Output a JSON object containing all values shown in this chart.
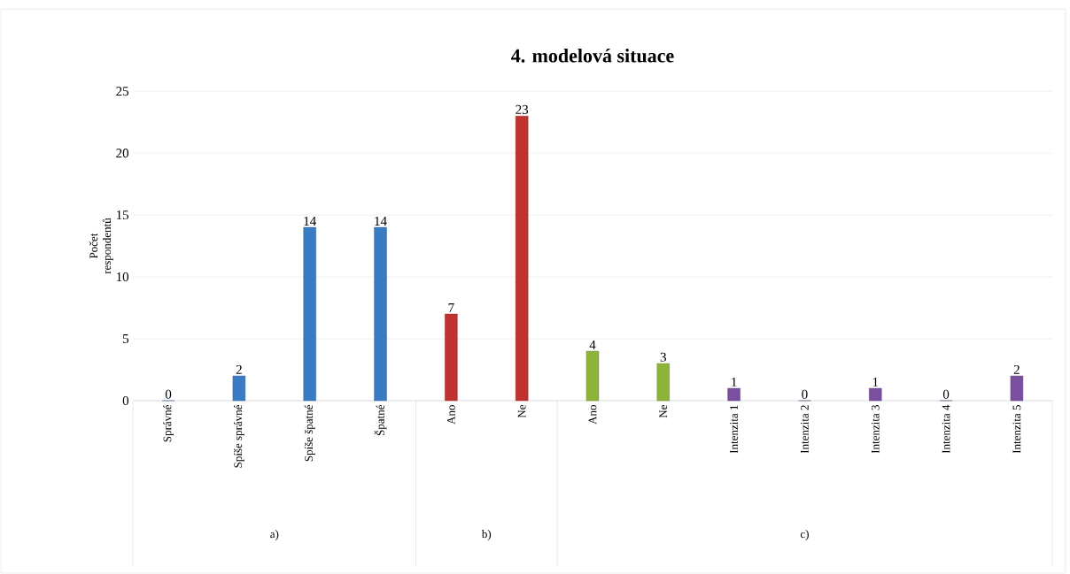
{
  "chart_data": {
    "type": "bar",
    "title": "4. modelová situace",
    "ylabel": "Počet respondentů",
    "categories": [
      "Správné",
      "Spíše správné",
      "Spíše špatné",
      "Špatné",
      "Ano",
      "Ne",
      "Ano",
      "Ne",
      "Intenzita 1",
      "Intenzita 2",
      "Intenzita 3",
      "Intenzita 4",
      "Intenzita 5"
    ],
    "values": [
      0,
      2,
      14,
      14,
      7,
      23,
      4,
      3,
      1,
      0,
      1,
      0,
      2
    ],
    "colors": [
      "#3a7cc4",
      "#3a7cc4",
      "#3a7cc4",
      "#3a7cc4",
      "#c0312f",
      "#c0312f",
      "#8db33a",
      "#8db33a",
      "#7a4fa0",
      "#7a4fa0",
      "#7a4fa0",
      "#7a4fa0",
      "#7a4fa0"
    ],
    "ylim": [
      0,
      25
    ],
    "yticks": [
      0,
      5,
      10,
      15,
      20,
      25
    ],
    "grid": "y",
    "data_labels": true,
    "annotations": [
      "a)",
      "b)",
      "c)"
    ]
  }
}
